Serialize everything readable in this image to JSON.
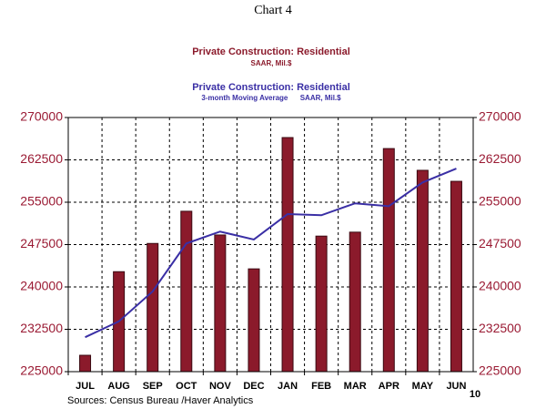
{
  "chart_data": {
    "type": "bar",
    "title": "Chart 4",
    "series": [
      {
        "name": "Private Construction: Residential",
        "unit_label": "SAAR, Mil.$",
        "type": "bar",
        "color": "#8b1a2b",
        "values": [
          227900,
          242700,
          247700,
          253400,
          249200,
          243200,
          266450,
          249000,
          249700,
          264500,
          260650,
          258700
        ]
      },
      {
        "name": "Private Construction: Residential",
        "unit_label": "3-month Moving Average      SAAR, Mil.$",
        "type": "line",
        "color": "#3a2fa5",
        "values": [
          231100,
          233900,
          239200,
          247700,
          249800,
          248400,
          252900,
          252700,
          254800,
          254300,
          258500,
          260950
        ]
      }
    ],
    "categories": [
      "JUL",
      "AUG",
      "SEP",
      "OCT",
      "NOV",
      "DEC",
      "JAN",
      "FEB",
      "MAR",
      "APR",
      "MAY",
      "JUN"
    ],
    "year_label": "10",
    "ylim": [
      225000,
      270000
    ],
    "yticks": [
      225000,
      232500,
      240000,
      247500,
      255000,
      262500,
      270000
    ],
    "grid": true,
    "source": "Sources:  Census Bureau /Haver Analytics"
  }
}
